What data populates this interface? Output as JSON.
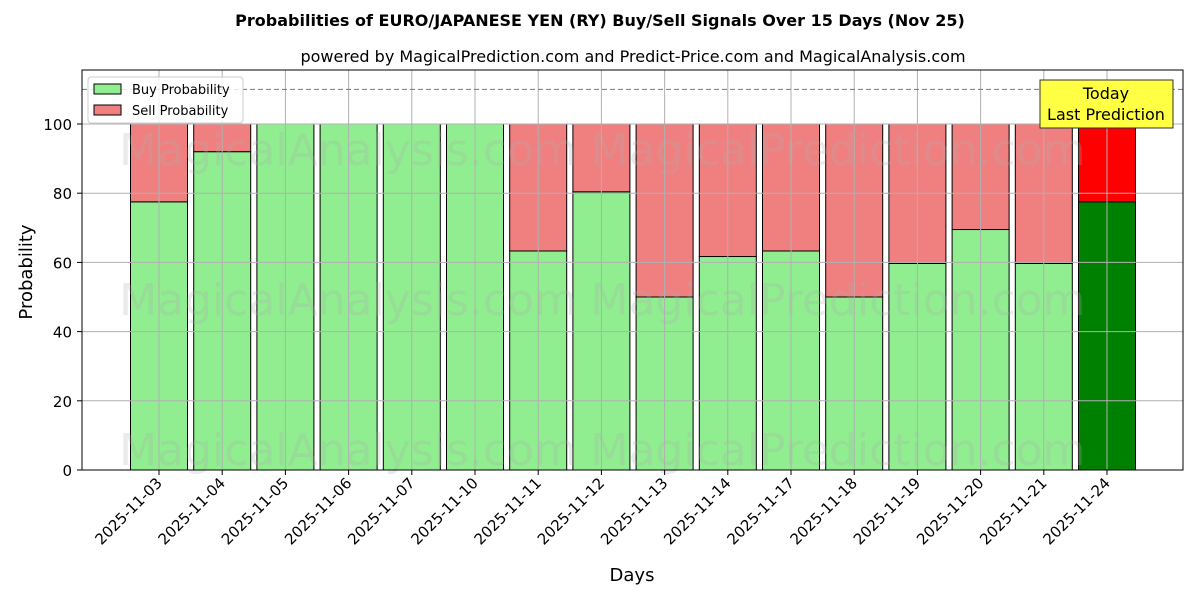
{
  "chart_data": {
    "type": "bar",
    "stacked": true,
    "title": "Probabilities of EURO/JAPANESE YEN (RY) Buy/Sell Signals Over 15 Days (Nov 25)",
    "subtitle": "powered by MagicalPrediction.com and Predict-Price.com and MagicalAnalysis.com",
    "xlabel": "Days",
    "ylabel": "Probability",
    "ylim": [
      0,
      115
    ],
    "yticks": [
      0,
      20,
      40,
      60,
      80,
      100
    ],
    "reference_line": 110,
    "grid": true,
    "legend_position": "top-left",
    "categories": [
      "2025-11-03",
      "2025-11-04",
      "2025-11-05",
      "2025-11-06",
      "2025-11-07",
      "2025-11-10",
      "2025-11-11",
      "2025-11-12",
      "2025-11-13",
      "2025-11-14",
      "2025-11-17",
      "2025-11-18",
      "2025-11-19",
      "2025-11-20",
      "2025-11-21",
      "2025-11-24"
    ],
    "series": [
      {
        "name": "Buy Probability",
        "color": "#90ee90",
        "values": [
          77.5,
          92,
          100,
          100,
          100,
          100,
          63.3,
          80.4,
          50,
          61.7,
          63.3,
          50,
          59.7,
          69.5,
          59.7,
          77.5
        ]
      },
      {
        "name": "Sell Probability",
        "color": "#f08080",
        "values": [
          22.5,
          8,
          0,
          0,
          0,
          0,
          36.7,
          19.6,
          50,
          38.3,
          36.7,
          50,
          40.3,
          30.5,
          40.3,
          22.5
        ]
      }
    ],
    "highlight": {
      "buy_color": "#008000",
      "sell_color": "#ff0000"
    },
    "annotation": {
      "line1": "Today",
      "line2": "Last Prediction",
      "color": "#ffff44"
    },
    "watermarks": [
      "MagicalAnalysis.com",
      "MagicalPrediction.com"
    ]
  }
}
